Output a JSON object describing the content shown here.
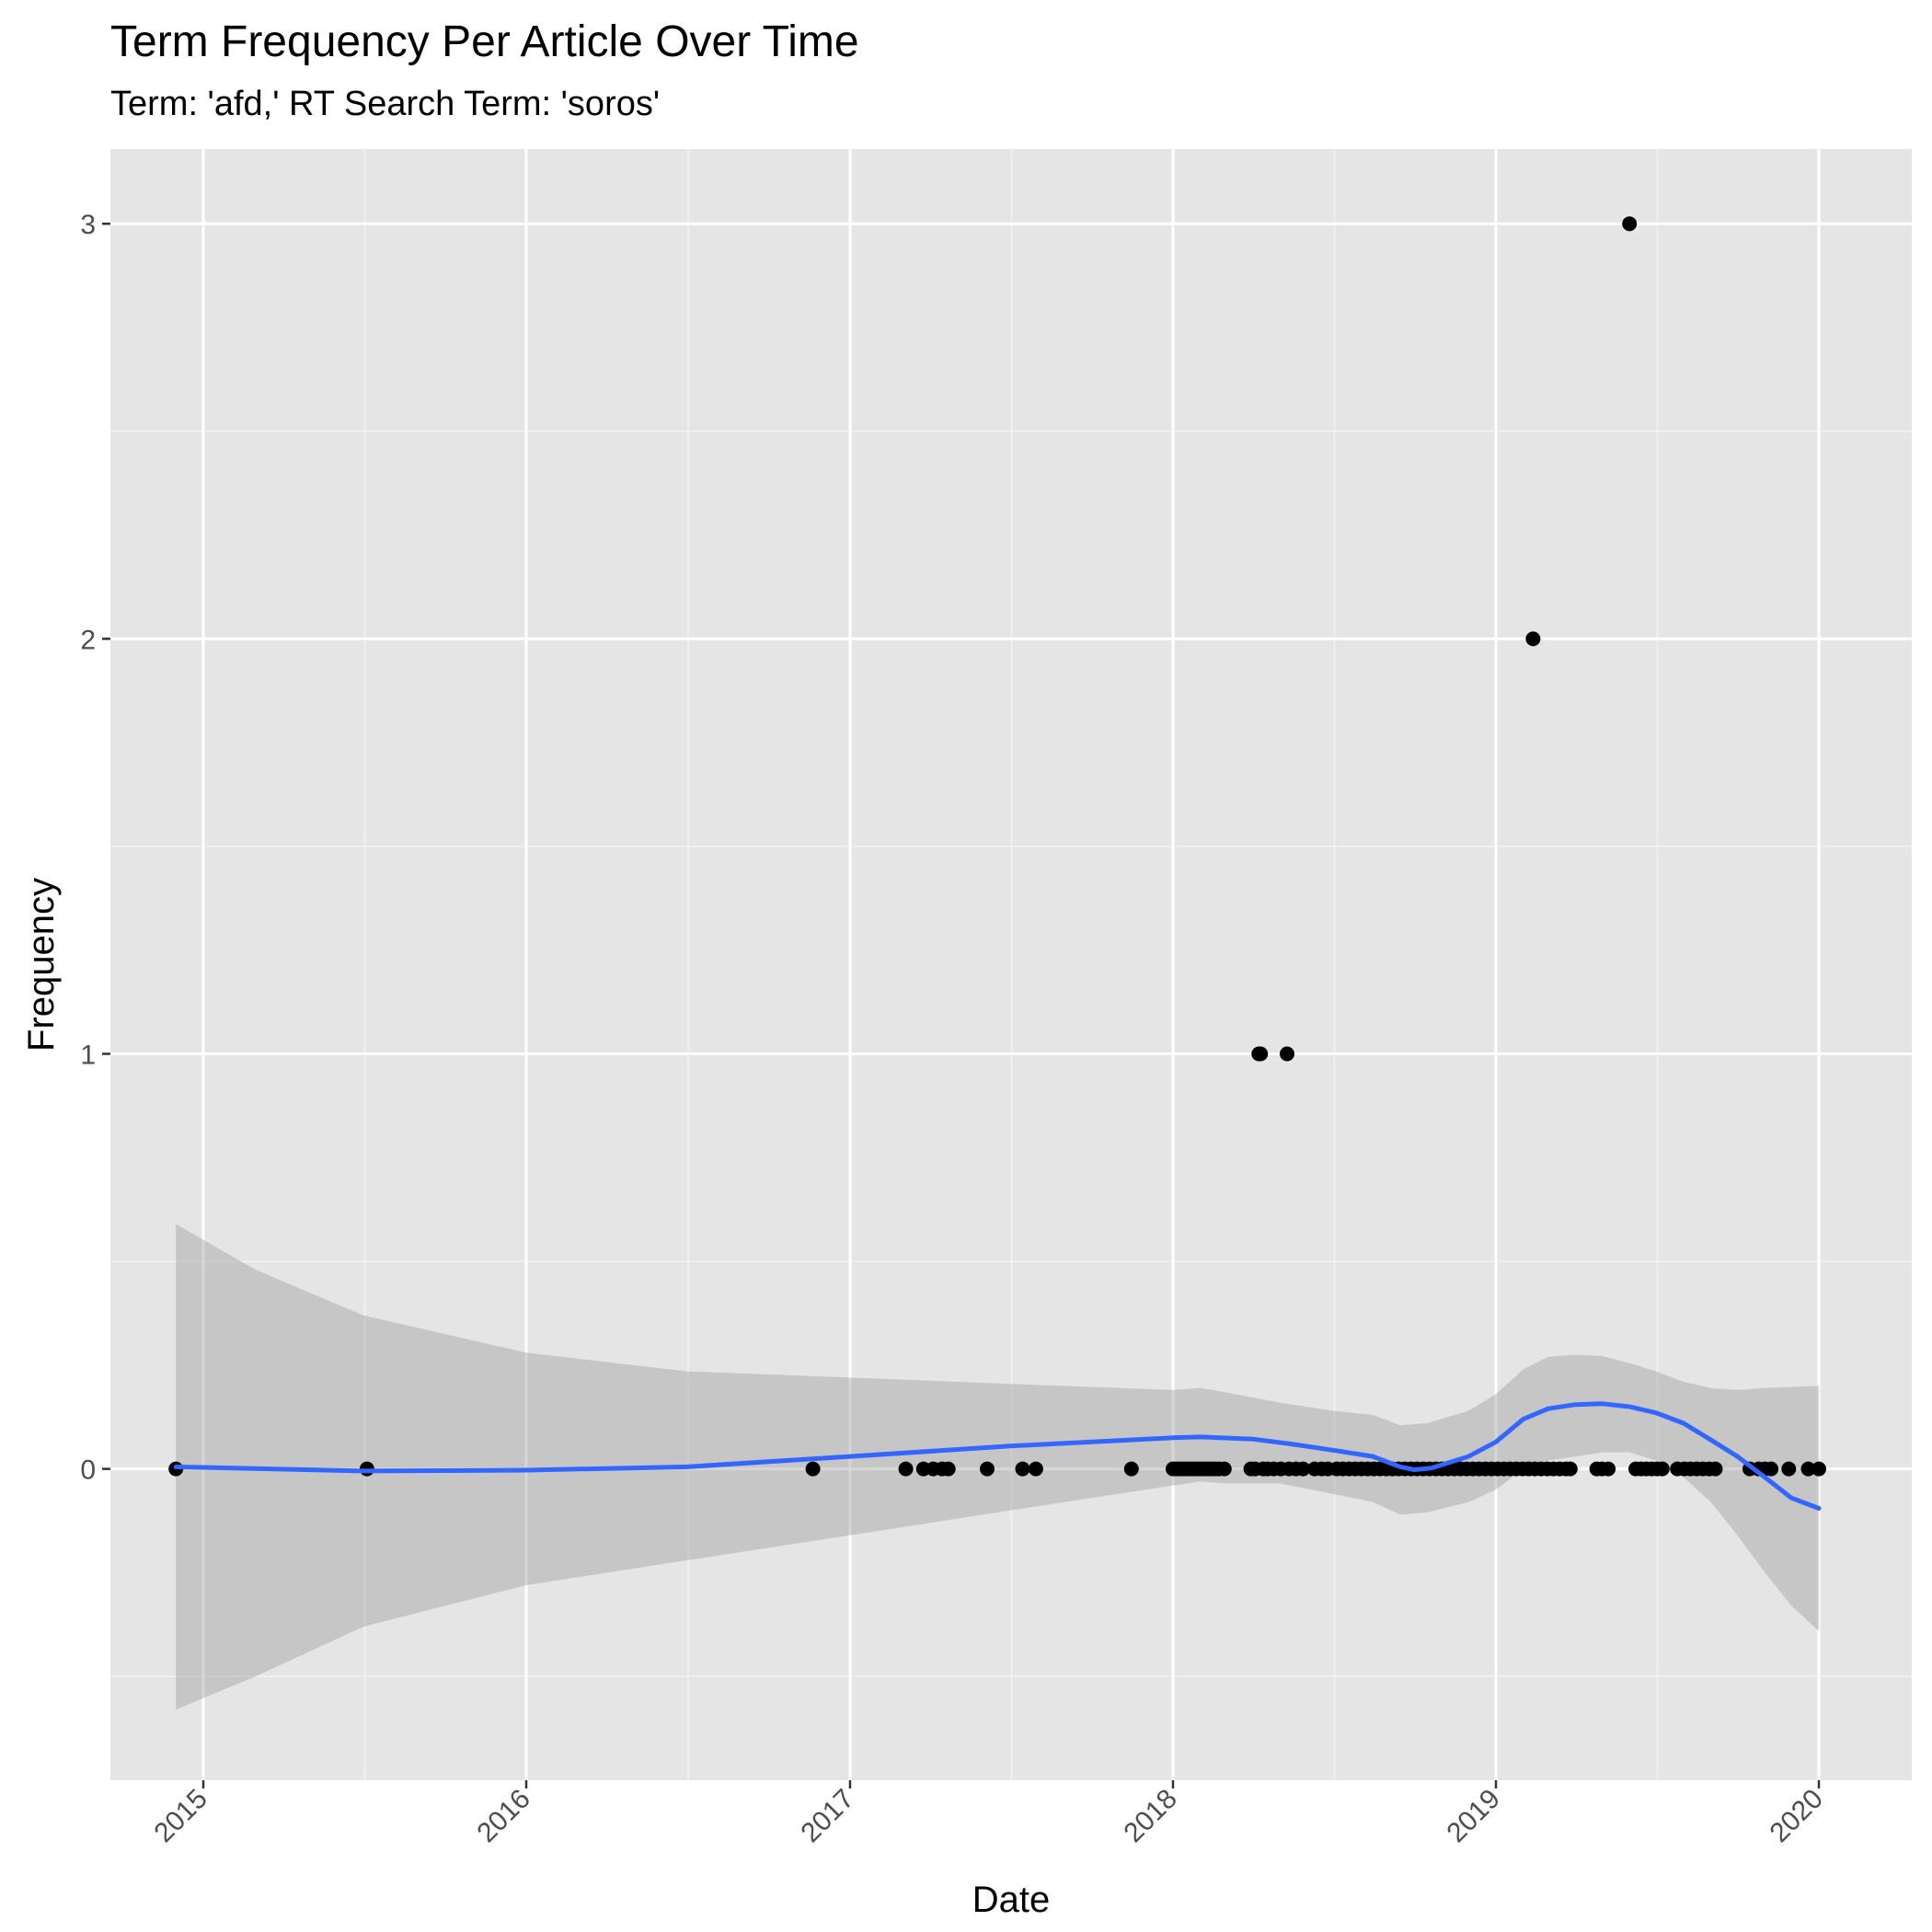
{
  "chart_data": {
    "type": "scatter",
    "title": "Term Frequency Per Article Over Time",
    "subtitle": "Term: 'afd,' RT Search Term: 'soros'",
    "xlabel": "Date",
    "ylabel": "Frequency",
    "x_scale": "date",
    "xlim": [
      "2014-09-18",
      "2020-04-15"
    ],
    "ylim": [
      -0.75,
      3.18
    ],
    "x_ticks": [
      "2015-01-01",
      "2016-01-01",
      "2017-01-01",
      "2018-01-01",
      "2019-01-01",
      "2020-01-01"
    ],
    "x_tick_labels": [
      "2015",
      "2016",
      "2017",
      "2018",
      "2019",
      "2020"
    ],
    "y_ticks": [
      0,
      1,
      2,
      3
    ],
    "y_tick_labels": [
      "0",
      "1",
      "2",
      "3"
    ],
    "x_tick_label_rotation": "45°",
    "grid": true,
    "colors": {
      "panel": "#e5e5e5",
      "grid_major": "#ffffff",
      "grid_minor": "#f2f2f2",
      "points": "#000000",
      "smooth_line": "#3366ff",
      "ribbon": "#999999",
      "axis_text": "#4d4d4d"
    },
    "series": [
      {
        "kind": "points",
        "points": [
          [
            "2014-12-01",
            0
          ],
          [
            "2015-07-05",
            0
          ],
          [
            "2016-11-20",
            0
          ],
          [
            "2017-03-05",
            0
          ],
          [
            "2017-03-25",
            0
          ],
          [
            "2017-04-05",
            0
          ],
          [
            "2017-04-15",
            0
          ],
          [
            "2017-04-22",
            0
          ],
          [
            "2017-06-05",
            0
          ],
          [
            "2017-07-15",
            0
          ],
          [
            "2017-07-30",
            0
          ],
          [
            "2017-11-15",
            0
          ],
          [
            "2018-01-01",
            0
          ],
          [
            "2018-01-05",
            0
          ],
          [
            "2018-01-09",
            0
          ],
          [
            "2018-01-13",
            0
          ],
          [
            "2018-01-17",
            0
          ],
          [
            "2018-01-21",
            0
          ],
          [
            "2018-01-25",
            0
          ],
          [
            "2018-01-29",
            0
          ],
          [
            "2018-02-02",
            0
          ],
          [
            "2018-02-06",
            0
          ],
          [
            "2018-02-10",
            0
          ],
          [
            "2018-02-14",
            0
          ],
          [
            "2018-02-18",
            0
          ],
          [
            "2018-02-22",
            0
          ],
          [
            "2018-02-28",
            0
          ],
          [
            "2018-03-30",
            0
          ],
          [
            "2018-04-04",
            0
          ],
          [
            "2018-04-08",
            1
          ],
          [
            "2018-04-10",
            1
          ],
          [
            "2018-04-13",
            0
          ],
          [
            "2018-04-18",
            0
          ],
          [
            "2018-04-25",
            0
          ],
          [
            "2018-05-03",
            0
          ],
          [
            "2018-05-10",
            1
          ],
          [
            "2018-05-12",
            0
          ],
          [
            "2018-05-20",
            0
          ],
          [
            "2018-05-28",
            0
          ],
          [
            "2018-06-10",
            0
          ],
          [
            "2018-06-18",
            0
          ],
          [
            "2018-06-25",
            0
          ],
          [
            "2018-07-05",
            0
          ],
          [
            "2018-07-12",
            0
          ],
          [
            "2018-07-19",
            0
          ],
          [
            "2018-07-26",
            0
          ],
          [
            "2018-08-02",
            0
          ],
          [
            "2018-08-09",
            0
          ],
          [
            "2018-08-16",
            0
          ],
          [
            "2018-08-23",
            0
          ],
          [
            "2018-08-30",
            0
          ],
          [
            "2018-09-06",
            0
          ],
          [
            "2018-09-13",
            0
          ],
          [
            "2018-09-20",
            0
          ],
          [
            "2018-09-27",
            0
          ],
          [
            "2018-10-04",
            0
          ],
          [
            "2018-10-11",
            0
          ],
          [
            "2018-10-18",
            0
          ],
          [
            "2018-10-25",
            0
          ],
          [
            "2018-11-01",
            0
          ],
          [
            "2018-11-08",
            0
          ],
          [
            "2018-11-15",
            0
          ],
          [
            "2018-11-22",
            0
          ],
          [
            "2018-11-29",
            0
          ],
          [
            "2018-12-06",
            0
          ],
          [
            "2018-12-13",
            0
          ],
          [
            "2018-12-20",
            0
          ],
          [
            "2018-12-27",
            0
          ],
          [
            "2019-01-03",
            0
          ],
          [
            "2019-01-10",
            0
          ],
          [
            "2019-01-17",
            0
          ],
          [
            "2019-01-24",
            0
          ],
          [
            "2019-01-31",
            0
          ],
          [
            "2019-02-07",
            0
          ],
          [
            "2019-02-12",
            2
          ],
          [
            "2019-02-14",
            0
          ],
          [
            "2019-02-21",
            0
          ],
          [
            "2019-02-28",
            0
          ],
          [
            "2019-03-07",
            0
          ],
          [
            "2019-03-14",
            0
          ],
          [
            "2019-03-21",
            0
          ],
          [
            "2019-03-26",
            0
          ],
          [
            "2019-04-25",
            0
          ],
          [
            "2019-05-01",
            0
          ],
          [
            "2019-05-08",
            0
          ],
          [
            "2019-06-01",
            3
          ],
          [
            "2019-06-08",
            0
          ],
          [
            "2019-06-14",
            0
          ],
          [
            "2019-06-20",
            0
          ],
          [
            "2019-06-26",
            0
          ],
          [
            "2019-07-02",
            0
          ],
          [
            "2019-07-08",
            0
          ],
          [
            "2019-07-25",
            0
          ],
          [
            "2019-08-02",
            0
          ],
          [
            "2019-08-09",
            0
          ],
          [
            "2019-08-16",
            0
          ],
          [
            "2019-08-23",
            0
          ],
          [
            "2019-08-30",
            0
          ],
          [
            "2019-09-06",
            0
          ],
          [
            "2019-10-15",
            0
          ],
          [
            "2019-10-25",
            0
          ],
          [
            "2019-11-01",
            0
          ],
          [
            "2019-11-08",
            0
          ],
          [
            "2019-11-28",
            0
          ],
          [
            "2019-12-20",
            0
          ],
          [
            "2020-01-01",
            0
          ]
        ]
      },
      {
        "kind": "smooth",
        "points": [
          [
            "2014-12-01",
            0.005
          ],
          [
            "2015-07-01",
            -0.005
          ],
          [
            "2016-01-01",
            -0.003
          ],
          [
            "2016-07-01",
            0.005
          ],
          [
            "2017-01-01",
            0.03
          ],
          [
            "2017-07-01",
            0.055
          ],
          [
            "2018-01-01",
            0.075
          ],
          [
            "2018-02-01",
            0.077
          ],
          [
            "2018-04-01",
            0.072
          ],
          [
            "2018-05-15",
            0.06
          ],
          [
            "2018-07-01",
            0.045
          ],
          [
            "2018-08-15",
            0.03
          ],
          [
            "2018-09-15",
            0.005
          ],
          [
            "2018-10-01",
            -0.002
          ],
          [
            "2018-10-20",
            0.002
          ],
          [
            "2018-12-01",
            0.03
          ],
          [
            "2019-01-01",
            0.065
          ],
          [
            "2019-02-01",
            0.12
          ],
          [
            "2019-03-01",
            0.145
          ],
          [
            "2019-04-01",
            0.155
          ],
          [
            "2019-05-01",
            0.157
          ],
          [
            "2019-06-01",
            0.15
          ],
          [
            "2019-07-01",
            0.135
          ],
          [
            "2019-08-01",
            0.11
          ],
          [
            "2019-09-01",
            0.07
          ],
          [
            "2019-10-01",
            0.03
          ],
          [
            "2019-11-01",
            -0.02
          ],
          [
            "2019-12-01",
            -0.07
          ],
          [
            "2020-01-01",
            -0.095
          ]
        ]
      },
      {
        "kind": "ribbon",
        "upper": [
          [
            "2014-12-01",
            0.59
          ],
          [
            "2015-03-01",
            0.48
          ],
          [
            "2015-07-01",
            0.37
          ],
          [
            "2016-01-01",
            0.28
          ],
          [
            "2016-07-01",
            0.235
          ],
          [
            "2017-01-01",
            0.22
          ],
          [
            "2017-07-01",
            0.205
          ],
          [
            "2018-01-01",
            0.19
          ],
          [
            "2018-02-01",
            0.195
          ],
          [
            "2018-03-01",
            0.185
          ],
          [
            "2018-05-01",
            0.16
          ],
          [
            "2018-07-01",
            0.14
          ],
          [
            "2018-08-15",
            0.13
          ],
          [
            "2018-09-15",
            0.105
          ],
          [
            "2018-10-15",
            0.11
          ],
          [
            "2018-12-01",
            0.14
          ],
          [
            "2019-01-01",
            0.18
          ],
          [
            "2019-02-01",
            0.24
          ],
          [
            "2019-03-01",
            0.27
          ],
          [
            "2019-04-01",
            0.275
          ],
          [
            "2019-05-01",
            0.272
          ],
          [
            "2019-06-01",
            0.255
          ],
          [
            "2019-07-01",
            0.235
          ],
          [
            "2019-08-01",
            0.21
          ],
          [
            "2019-09-01",
            0.195
          ],
          [
            "2019-10-01",
            0.19
          ],
          [
            "2019-11-01",
            0.195
          ],
          [
            "2020-01-01",
            0.2
          ]
        ],
        "lower": [
          [
            "2014-12-01",
            -0.58
          ],
          [
            "2015-03-01",
            -0.5
          ],
          [
            "2015-07-01",
            -0.38
          ],
          [
            "2016-01-01",
            -0.28
          ],
          [
            "2016-07-01",
            -0.22
          ],
          [
            "2017-01-01",
            -0.16
          ],
          [
            "2017-07-01",
            -0.1
          ],
          [
            "2018-01-01",
            -0.04
          ],
          [
            "2018-02-01",
            -0.03
          ],
          [
            "2018-03-01",
            -0.035
          ],
          [
            "2018-05-01",
            -0.035
          ],
          [
            "2018-07-01",
            -0.06
          ],
          [
            "2018-08-15",
            -0.08
          ],
          [
            "2018-09-15",
            -0.11
          ],
          [
            "2018-10-15",
            -0.105
          ],
          [
            "2018-12-01",
            -0.08
          ],
          [
            "2019-01-01",
            -0.05
          ],
          [
            "2019-02-01",
            0.0
          ],
          [
            "2019-03-01",
            0.02
          ],
          [
            "2019-04-01",
            0.03
          ],
          [
            "2019-05-01",
            0.04
          ],
          [
            "2019-06-01",
            0.04
          ],
          [
            "2019-07-01",
            0.02
          ],
          [
            "2019-08-01",
            -0.02
          ],
          [
            "2019-09-01",
            -0.08
          ],
          [
            "2019-10-01",
            -0.16
          ],
          [
            "2019-11-01",
            -0.25
          ],
          [
            "2019-12-01",
            -0.33
          ],
          [
            "2020-01-01",
            -0.39
          ]
        ]
      }
    ]
  }
}
